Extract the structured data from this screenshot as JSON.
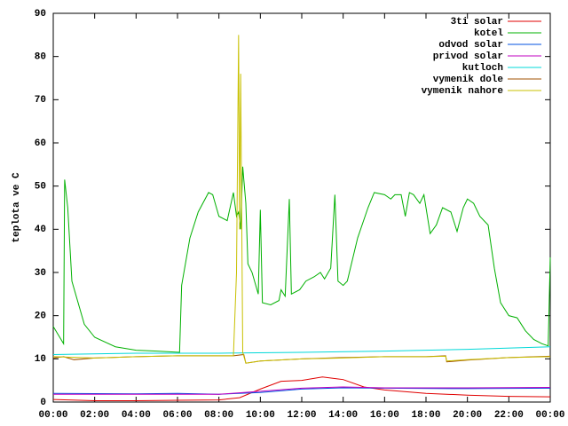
{
  "chart_data": {
    "type": "line",
    "ylabel": "teplota ve C",
    "xlim": [
      0,
      24
    ],
    "ylim": [
      0,
      90
    ],
    "xticks": [
      {
        "value": 0,
        "label": "00:00"
      },
      {
        "value": 2,
        "label": "02:00"
      },
      {
        "value": 4,
        "label": "04:00"
      },
      {
        "value": 6,
        "label": "06:00"
      },
      {
        "value": 8,
        "label": "08:00"
      },
      {
        "value": 10,
        "label": "10:00"
      },
      {
        "value": 12,
        "label": "12:00"
      },
      {
        "value": 14,
        "label": "14:00"
      },
      {
        "value": 16,
        "label": "16:00"
      },
      {
        "value": 18,
        "label": "18:00"
      },
      {
        "value": 20,
        "label": "20:00"
      },
      {
        "value": 22,
        "label": "22:00"
      },
      {
        "value": 24,
        "label": "00:00"
      }
    ],
    "yticks": [
      0,
      10,
      20,
      30,
      40,
      50,
      60,
      70,
      80,
      90
    ],
    "legend": "top-right",
    "series": [
      {
        "name": "3ti solar",
        "color": "#e00000",
        "x": [
          0,
          2,
          4,
          6,
          8,
          9,
          10,
          11,
          12,
          13,
          14,
          15,
          16,
          18,
          20,
          22,
          24
        ],
        "values": [
          0.6,
          0.3,
          0.3,
          0.4,
          0.5,
          1,
          3,
          4.8,
          5,
          5.8,
          5.2,
          3.5,
          2.8,
          2,
          1.6,
          1.3,
          1.2
        ]
      },
      {
        "name": "kotel",
        "color": "#00b000",
        "x": [
          0,
          0.5,
          0.55,
          0.7,
          0.9,
          1.5,
          2,
          3,
          4,
          5,
          6.1,
          6.2,
          6.6,
          7,
          7.5,
          7.7,
          8,
          8.4,
          8.7,
          8.85,
          8.95,
          9.05,
          9.15,
          9.3,
          9.4,
          9.6,
          9.9,
          10,
          10.1,
          10.5,
          10.9,
          11,
          11.2,
          11.4,
          11.5,
          11.9,
          12.2,
          12.6,
          12.9,
          13.1,
          13.4,
          13.6,
          13.75,
          14,
          14.2,
          14.7,
          15.2,
          15.5,
          16,
          16.3,
          16.5,
          16.8,
          17,
          17.2,
          17.4,
          17.7,
          17.9,
          18.2,
          18.5,
          18.8,
          19.2,
          19.5,
          19.8,
          20,
          20.3,
          20.6,
          21,
          21.3,
          21.6,
          22,
          22.4,
          22.8,
          23.2,
          23.6,
          23.9,
          24
        ],
        "values": [
          17.5,
          13.5,
          51.5,
          45,
          28,
          18,
          15,
          12.8,
          12,
          11.8,
          11.5,
          27,
          38,
          44,
          48.5,
          48,
          43,
          42,
          48.5,
          43,
          44,
          40,
          54.5,
          46,
          32,
          30,
          25,
          44.5,
          23,
          22.5,
          23.5,
          26,
          24.5,
          47,
          25,
          26,
          28,
          29,
          30,
          28.5,
          31,
          48,
          28,
          27,
          28,
          38,
          45,
          48.5,
          48,
          47,
          48,
          48,
          43,
          48.5,
          48,
          46,
          48,
          39,
          41,
          45,
          44,
          39.5,
          45,
          47,
          46,
          43,
          41,
          31,
          23,
          20,
          19.5,
          16.5,
          14.5,
          13.5,
          13,
          33.5
        ]
      },
      {
        "name": "odvod solar",
        "color": "#0050e0",
        "x": [
          0,
          4,
          6,
          8,
          10,
          12,
          14,
          16,
          20,
          24
        ],
        "values": [
          2,
          1.9,
          2,
          1.8,
          2.2,
          3,
          3.3,
          3.2,
          3.1,
          3.2
        ]
      },
      {
        "name": "privod solar",
        "color": "#c000c0",
        "x": [
          0,
          4,
          8,
          10,
          12,
          14,
          16,
          20,
          24
        ],
        "values": [
          1.8,
          1.8,
          1.8,
          2.5,
          3.2,
          3.5,
          3.3,
          3.3,
          3.4
        ]
      },
      {
        "name": "kutloch",
        "color": "#00d8d8",
        "x": [
          0,
          4,
          8,
          12,
          16,
          20,
          24
        ],
        "values": [
          11,
          11.3,
          11.3,
          11.5,
          11.8,
          12.2,
          12.8
        ]
      },
      {
        "name": "vymenik dole",
        "color": "#a05000",
        "x": [
          0,
          0.5,
          1,
          2,
          4,
          6,
          8.7,
          9.2,
          9.3,
          10,
          12,
          14,
          16,
          18,
          18.95,
          19,
          20,
          22,
          24
        ],
        "values": [
          10.2,
          10.5,
          9.8,
          10.2,
          10.5,
          10.7,
          10.7,
          11,
          9,
          9.5,
          10,
          10.3,
          10.5,
          10.5,
          10.7,
          9.3,
          9.7,
          10.3,
          10.6
        ]
      },
      {
        "name": "vymenik nahore",
        "color": "#c8c000",
        "x": [
          0,
          2,
          4,
          6,
          8.7,
          8.85,
          8.95,
          9,
          9.05,
          9.15,
          9.3,
          10,
          12,
          14,
          16,
          18,
          18.95,
          19,
          20,
          22,
          24
        ],
        "values": [
          10.5,
          10.2,
          10.5,
          10.7,
          10.7,
          30,
          85,
          40,
          76,
          11.5,
          9,
          9.5,
          10,
          10.2,
          10.5,
          10.5,
          10.6,
          9.5,
          9.8,
          10.3,
          10.5
        ]
      }
    ]
  }
}
